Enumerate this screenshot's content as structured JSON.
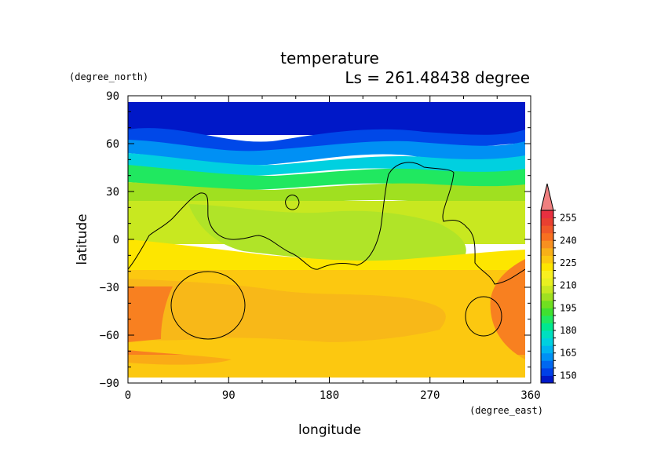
{
  "chart_data": {
    "type": "heatmap",
    "title": "temperature",
    "subtitle": "Ls = 261.48438 degree",
    "xlabel": "longitude",
    "ylabel": "latitude",
    "x_unit": "(degree_east)",
    "y_unit": "(degree_north)",
    "xlim": [
      0,
      360
    ],
    "ylim": [
      -90,
      90
    ],
    "x_ticks": [
      "0",
      "90",
      "180",
      "270",
      "360"
    ],
    "y_ticks": [
      "90",
      "60",
      "30",
      "0",
      "−30",
      "−60",
      "−90"
    ],
    "colorbar": {
      "levels": [
        145,
        150,
        155,
        160,
        165,
        170,
        175,
        180,
        185,
        190,
        195,
        200,
        205,
        210,
        215,
        220,
        225,
        230,
        235,
        240,
        245,
        250,
        255,
        260
      ],
      "labels": [
        "150",
        "165",
        "180",
        "195",
        "210",
        "225",
        "240",
        "255"
      ],
      "colors": [
        "#0018c8",
        "#0040e8",
        "#0068f0",
        "#0090f4",
        "#00b4f0",
        "#00d0e0",
        "#00e0c0",
        "#00e890",
        "#20e860",
        "#40e030",
        "#70e020",
        "#a0e020",
        "#c8e820",
        "#e8f020",
        "#f8f020",
        "#fde600",
        "#fcc810",
        "#f8b018",
        "#f89020",
        "#f87020",
        "#f05828",
        "#e84030",
        "#e83040"
      ],
      "extend_color": "#f08080"
    },
    "zonal_mean_by_latitude": [
      {
        "lat": 85,
        "value": 148
      },
      {
        "lat": 75,
        "value": 150
      },
      {
        "lat": 68,
        "value": 153
      },
      {
        "lat": 62,
        "value": 160
      },
      {
        "lat": 56,
        "value": 172
      },
      {
        "lat": 50,
        "value": 180
      },
      {
        "lat": 44,
        "value": 185
      },
      {
        "lat": 38,
        "value": 192
      },
      {
        "lat": 32,
        "value": 198
      },
      {
        "lat": 24,
        "value": 205
      },
      {
        "lat": 15,
        "value": 212
      },
      {
        "lat": 5,
        "value": 215
      },
      {
        "lat": -5,
        "value": 218
      },
      {
        "lat": -15,
        "value": 222
      },
      {
        "lat": -25,
        "value": 228
      },
      {
        "lat": -40,
        "value": 230
      },
      {
        "lat": -55,
        "value": 232
      },
      {
        "lat": -65,
        "value": 235
      },
      {
        "lat": -80,
        "value": 232
      },
      {
        "lat": -85,
        "value": 230
      }
    ]
  }
}
